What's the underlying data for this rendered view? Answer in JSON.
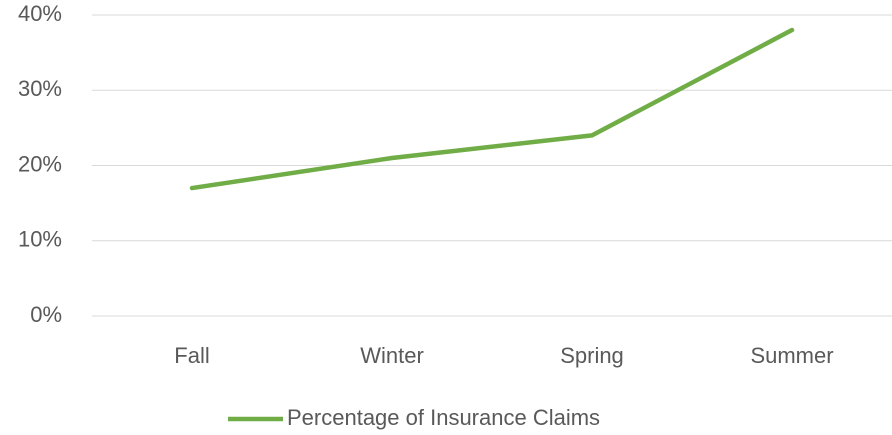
{
  "chart_data": {
    "type": "line",
    "categories": [
      "Fall",
      "Winter",
      "Spring",
      "Summer"
    ],
    "series": [
      {
        "name": "Percentage of Insurance Claims",
        "color": "#70ad47",
        "values": [
          17,
          21,
          24,
          38
        ]
      }
    ],
    "ylim": [
      0,
      40
    ],
    "yticks": [
      {
        "value": 0,
        "label": "0%"
      },
      {
        "value": 10,
        "label": "10%"
      },
      {
        "value": 20,
        "label": "20%"
      },
      {
        "value": 30,
        "label": "30%"
      },
      {
        "value": 40,
        "label": "40%"
      }
    ],
    "grid": true,
    "legend": "bottom"
  }
}
